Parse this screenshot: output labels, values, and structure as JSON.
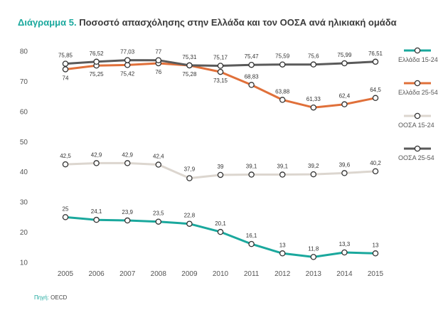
{
  "title_lead": "Διάγραμμα 5.",
  "title_rest": "Ποσοστό απασχόλησης στην Ελλάδα και τον ΟΟΣΑ ανά ηλικιακή ομάδα",
  "source_label": "Πηγή:",
  "source_value": "OECD",
  "chart_data": {
    "type": "line",
    "title": "Διάγραμμα 5. Ποσοστό απασχόλησης στην Ελλάδα και τον ΟΟΣΑ ανά ηλικιακή ομάδα",
    "x": [
      "2005",
      "2006",
      "2007",
      "2008",
      "2009",
      "2010",
      "2011",
      "2012",
      "2013",
      "2014",
      "2015"
    ],
    "ylim": [
      10,
      80
    ],
    "yticks": [
      10,
      20,
      30,
      40,
      50,
      60,
      70,
      80
    ],
    "grid": false,
    "legend_position": "right",
    "series": [
      {
        "name": "Ελλάδα 15-24",
        "color": "#1aa89d",
        "values": [
          25,
          24.1,
          23.9,
          23.5,
          22.8,
          20.1,
          16.1,
          13,
          11.8,
          13.3,
          13
        ],
        "labels": [
          "25",
          "24,1",
          "23,9",
          "23,5",
          "22,8",
          "20,1",
          "16,1",
          "13",
          "11,8",
          "13,3",
          "13"
        ]
      },
      {
        "name": "Ελλάδα 25-54",
        "color": "#e0703a",
        "values": [
          74,
          75.25,
          75.42,
          76,
          75.28,
          73.15,
          68.83,
          63.88,
          61.33,
          62.4,
          64.5
        ],
        "labels": [
          "74",
          "75,25",
          "75,42",
          "76",
          "75,28",
          "73,15",
          "68,83",
          "63,88",
          "61,33",
          "62,4",
          "64,5"
        ]
      },
      {
        "name": "ΟΟΣΑ 15-24",
        "color": "#dcd6cf",
        "values": [
          42.5,
          42.9,
          42.9,
          42.4,
          37.9,
          39,
          39.1,
          39.1,
          39.2,
          39.6,
          40.2
        ],
        "labels": [
          "42,5",
          "42,9",
          "42,9",
          "42,4",
          "37,9",
          "39",
          "39,1",
          "39,1",
          "39,2",
          "39,6",
          "40,2"
        ]
      },
      {
        "name": "ΟΟΣΑ 25-54",
        "color": "#5a5a5a",
        "values": [
          75.85,
          76.52,
          77.03,
          77,
          75.31,
          75.17,
          75.47,
          75.59,
          75.6,
          75.99,
          76.51
        ],
        "labels": [
          "75,85",
          "76,52",
          "77,03",
          "77",
          "75,31",
          "75,17",
          "75,47",
          "75,59",
          "75,6",
          "75,99",
          "76,51"
        ]
      }
    ]
  }
}
